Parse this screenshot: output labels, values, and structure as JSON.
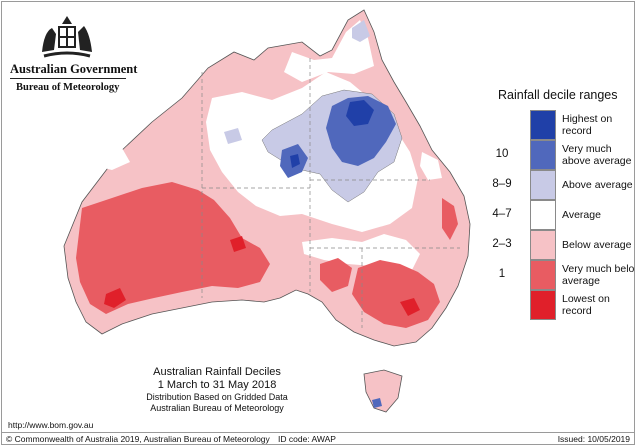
{
  "logo": {
    "government": "Australian Government",
    "bureau": "Bureau of Meteorology"
  },
  "legend": {
    "title": "Rainfall decile ranges",
    "items": [
      {
        "range": "",
        "label": "Highest on record",
        "color": "#2040a8"
      },
      {
        "range": "10",
        "label": "Very much above average",
        "color": "#5068bc"
      },
      {
        "range": "8–9",
        "label": "Above average",
        "color": "#c8cae6"
      },
      {
        "range": "4–7",
        "label": "Average",
        "color": "#ffffff"
      },
      {
        "range": "2–3",
        "label": "Below average",
        "color": "#f6c2c6"
      },
      {
        "range": "1",
        "label": "Very much below average",
        "color": "#e85c62"
      },
      {
        "range": "",
        "label": "Lowest on record",
        "color": "#e0202a"
      }
    ]
  },
  "caption": {
    "title": "Australian Rainfall Deciles",
    "period": "1 March to 31 May 2018",
    "note1": "Distribution Based on Gridded Data",
    "note2": "Australian Bureau of Meteorology"
  },
  "url": "http://www.bom.gov.au",
  "footer": {
    "copyright": "© Commonwealth of Australia 2019, Australian Bureau of Meteorology",
    "id_code": "ID code: AWAP",
    "issued": "Issued: 10/05/2019"
  }
}
